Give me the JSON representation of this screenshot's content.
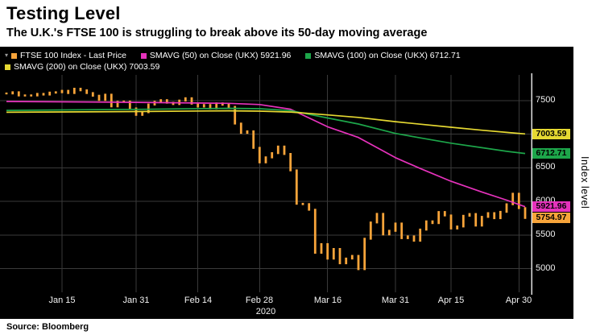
{
  "header": {
    "title": "Testing Level",
    "subtitle": "The U.K.'s FTSE 100 is struggling to break above its 50-day moving average"
  },
  "legend": {
    "rows": [
      [
        {
          "label": "FTSE 100 Index - Last Price",
          "color": "#F7A43A",
          "marker": true
        },
        {
          "label": "SMAVG (50)  on Close (UKX) 5921.96",
          "color": "#E632BC"
        },
        {
          "label": "SMAVG (100)  on Close (UKX) 6712.71",
          "color": "#1DA64A"
        }
      ],
      [
        {
          "label": "SMAVG (200)  on Close (UKX) 7003.59",
          "color": "#E5D832"
        }
      ]
    ]
  },
  "chart_data": {
    "type": "line",
    "price_style": "hlc-bars",
    "title": "Testing Level",
    "ylabel": "Index level",
    "year_label": "2020",
    "ylim": [
      4650,
      7880
    ],
    "y_ticks": [
      5000,
      5500,
      6000,
      6500,
      7000,
      7500
    ],
    "x_ticks": [
      {
        "label": "Jan 15",
        "index": 9
      },
      {
        "label": "Jan 31",
        "index": 21
      },
      {
        "label": "Feb 14",
        "index": 31
      },
      {
        "label": "Feb 28",
        "index": 41
      },
      {
        "label": "Mar 16",
        "index": 52
      },
      {
        "label": "Mar 31",
        "index": 63
      },
      {
        "label": "Apr 15",
        "index": 72
      },
      {
        "label": "Apr 30",
        "index": 83
      }
    ],
    "dates": [
      "Jan 2",
      "Jan 3",
      "Jan 6",
      "Jan 7",
      "Jan 8",
      "Jan 9",
      "Jan 10",
      "Jan 13",
      "Jan 14",
      "Jan 15",
      "Jan 16",
      "Jan 17",
      "Jan 20",
      "Jan 21",
      "Jan 22",
      "Jan 23",
      "Jan 24",
      "Jan 27",
      "Jan 28",
      "Jan 29",
      "Jan 30",
      "Jan 31",
      "Feb 3",
      "Feb 4",
      "Feb 5",
      "Feb 6",
      "Feb 7",
      "Feb 10",
      "Feb 11",
      "Feb 12",
      "Feb 13",
      "Feb 14",
      "Feb 17",
      "Feb 18",
      "Feb 19",
      "Feb 20",
      "Feb 21",
      "Feb 24",
      "Feb 25",
      "Feb 26",
      "Feb 27",
      "Feb 28",
      "Mar 2",
      "Mar 3",
      "Mar 4",
      "Mar 5",
      "Mar 6",
      "Mar 9",
      "Mar 10",
      "Mar 11",
      "Mar 12",
      "Mar 13",
      "Mar 16",
      "Mar 17",
      "Mar 18",
      "Mar 19",
      "Mar 20",
      "Mar 23",
      "Mar 24",
      "Mar 25",
      "Mar 26",
      "Mar 27",
      "Mar 30",
      "Mar 31",
      "Apr 1",
      "Apr 2",
      "Apr 3",
      "Apr 6",
      "Apr 7",
      "Apr 8",
      "Apr 9",
      "Apr 14",
      "Apr 15",
      "Apr 16",
      "Apr 17",
      "Apr 20",
      "Apr 21",
      "Apr 22",
      "Apr 23",
      "Apr 24",
      "Apr 27",
      "Apr 28",
      "Apr 29",
      "Apr 30",
      "May 1"
    ],
    "price": {
      "name": "FTSE 100 Index - Last Price",
      "color": "#F7A43A",
      "last": 5754.97,
      "closes": [
        7604,
        7622,
        7575,
        7573,
        7575,
        7598,
        7588,
        7617,
        7622,
        7643,
        7610,
        7675,
        7651,
        7610,
        7571,
        7508,
        7586,
        7412,
        7481,
        7484,
        7382,
        7286,
        7326,
        7440,
        7482,
        7505,
        7467,
        7446,
        7499,
        7534,
        7452,
        7409,
        7433,
        7382,
        7457,
        7437,
        7404,
        7157,
        7018,
        7042,
        6796,
        6581,
        6655,
        6718,
        6816,
        6705,
        6462,
        5965,
        5960,
        5877,
        5237,
        5366,
        5151,
        5294,
        5081,
        5152,
        5191,
        4994,
        5446,
        5688,
        5816,
        5510,
        5564,
        5672,
        5455,
        5480,
        5416,
        5582,
        5704,
        5678,
        5843,
        5792,
        5598,
        5628,
        5787,
        5813,
        5641,
        5771,
        5826,
        5752,
        5846,
        5958,
        6115,
        5901,
        5754.97
      ]
    },
    "smavg": [
      {
        "name": "SMAVG (50) on Close (UKX)",
        "color": "#E632BC",
        "last": 5921.96,
        "points": [
          [
            0,
            7485
          ],
          [
            21,
            7472
          ],
          [
            36,
            7458
          ],
          [
            41,
            7440
          ],
          [
            46,
            7370
          ],
          [
            52,
            7110
          ],
          [
            57,
            6950
          ],
          [
            63,
            6650
          ],
          [
            67,
            6490
          ],
          [
            72,
            6300
          ],
          [
            77,
            6140
          ],
          [
            81,
            6020
          ],
          [
            84,
            5921.96
          ]
        ]
      },
      {
        "name": "SMAVG (100) on Close (UKX)",
        "color": "#1DA64A",
        "last": 6712.71,
        "points": [
          [
            0,
            7352
          ],
          [
            21,
            7368
          ],
          [
            36,
            7384
          ],
          [
            41,
            7378
          ],
          [
            46,
            7350
          ],
          [
            52,
            7240
          ],
          [
            57,
            7150
          ],
          [
            63,
            7010
          ],
          [
            67,
            6945
          ],
          [
            72,
            6865
          ],
          [
            77,
            6798
          ],
          [
            81,
            6745
          ],
          [
            84,
            6712.71
          ]
        ]
      },
      {
        "name": "SMAVG (200) on Close (UKX)",
        "color": "#E5D832",
        "last": 7003.59,
        "points": [
          [
            0,
            7325
          ],
          [
            21,
            7336
          ],
          [
            36,
            7346
          ],
          [
            41,
            7342
          ],
          [
            46,
            7328
          ],
          [
            52,
            7285
          ],
          [
            57,
            7248
          ],
          [
            63,
            7185
          ],
          [
            67,
            7148
          ],
          [
            72,
            7102
          ],
          [
            77,
            7058
          ],
          [
            81,
            7026
          ],
          [
            84,
            7003.59
          ]
        ]
      }
    ],
    "badges": [
      {
        "label": "7003.59",
        "color": "#E5D832"
      },
      {
        "label": "6712.71",
        "color": "#1DA64A"
      },
      {
        "label": "5921.96",
        "color": "#E632BC"
      },
      {
        "label": "5754.97",
        "color": "#F7A43A"
      }
    ]
  },
  "footer": {
    "source": "Source: Bloomberg"
  }
}
